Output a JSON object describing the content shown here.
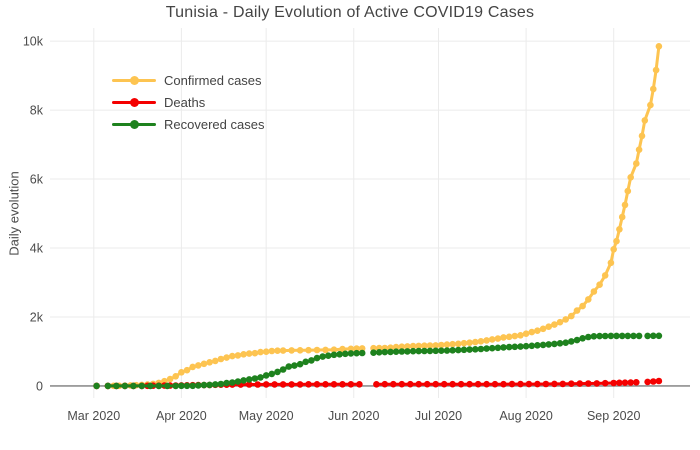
{
  "title": "Tunisia - Daily Evolution of Active COVID19 Cases",
  "colors": {
    "background": "#ffffff",
    "grid": "#ebebeb",
    "zeroline": "#8f8f8f",
    "title_text": "#444444",
    "tick_text": "#4c4c4c",
    "confirmed": "#fdc451",
    "deaths": "#f40000",
    "recovered": "#1e821e"
  },
  "chart_data": {
    "type": "line",
    "title": "Tunisia - Daily Evolution of Active COVID19 Cases",
    "xlabel": "",
    "ylabel": "Daily evolution",
    "x_unit": "days since 2020-03-01",
    "xlim": [
      -15.5,
      211
    ],
    "ylim": [
      -350,
      10380
    ],
    "grid": true,
    "legend_position": "inside-top-left",
    "marker_mode": "lines+markers",
    "x_ticks": [
      {
        "day": 0,
        "label": "Mar 2020"
      },
      {
        "day": 31,
        "label": "Apr 2020"
      },
      {
        "day": 61,
        "label": "May 2020"
      },
      {
        "day": 92,
        "label": "Jun 2020"
      },
      {
        "day": 122,
        "label": "Jul 2020"
      },
      {
        "day": 153,
        "label": "Aug 2020"
      },
      {
        "day": 184,
        "label": "Sep 2020"
      }
    ],
    "y_ticks": [
      {
        "value": 0,
        "label": "0"
      },
      {
        "value": 2000,
        "label": "2k"
      },
      {
        "value": 4000,
        "label": "4k"
      },
      {
        "value": 6000,
        "label": "6k"
      },
      {
        "value": 8000,
        "label": "8k"
      },
      {
        "value": 10000,
        "label": "10k"
      }
    ],
    "series": [
      {
        "name": "Confirmed cases",
        "color": "#fdc451",
        "points": [
          [
            1,
            1
          ],
          [
            2,
            null
          ],
          [
            5,
            2
          ],
          [
            7,
            3
          ],
          [
            9,
            5
          ],
          [
            11,
            7
          ],
          [
            13,
            16
          ],
          [
            15,
            20
          ],
          [
            17,
            29
          ],
          [
            19,
            39
          ],
          [
            21,
            60
          ],
          [
            23,
            89
          ],
          [
            25,
            138
          ],
          [
            27,
            197
          ],
          [
            29,
            278
          ],
          [
            31,
            394
          ],
          [
            33,
            455
          ],
          [
            35,
            553
          ],
          [
            37,
            596
          ],
          [
            39,
            643
          ],
          [
            41,
            685
          ],
          [
            43,
            726
          ],
          [
            45,
            780
          ],
          [
            47,
            822
          ],
          [
            49,
            866
          ],
          [
            51,
            884
          ],
          [
            53,
            918
          ],
          [
            55,
            939
          ],
          [
            57,
            949
          ],
          [
            59,
            980
          ],
          [
            61,
            994
          ],
          [
            63,
            1013
          ],
          [
            65,
            1022
          ],
          [
            67,
            1026
          ],
          [
            70,
            1030
          ],
          [
            73,
            1032
          ],
          [
            76,
            1036
          ],
          [
            79,
            1043
          ],
          [
            82,
            1046
          ],
          [
            85,
            1051
          ],
          [
            88,
            1068
          ],
          [
            91,
            1077
          ],
          [
            93,
            1084
          ],
          [
            95,
            1087
          ],
          [
            97,
            null
          ],
          [
            99,
            1093
          ],
          [
            101,
            1096
          ],
          [
            103,
            1100
          ],
          [
            105,
            1110
          ],
          [
            107,
            1125
          ],
          [
            109,
            1138
          ],
          [
            111,
            1146
          ],
          [
            113,
            1156
          ],
          [
            115,
            1162
          ],
          [
            117,
            1168
          ],
          [
            119,
            1172
          ],
          [
            121,
            1174
          ],
          [
            123,
            1186
          ],
          [
            125,
            1199
          ],
          [
            127,
            1210
          ],
          [
            129,
            1221
          ],
          [
            131,
            1240
          ],
          [
            133,
            1255
          ],
          [
            135,
            1271
          ],
          [
            137,
            1295
          ],
          [
            139,
            1319
          ],
          [
            141,
            1348
          ],
          [
            143,
            1374
          ],
          [
            145,
            1406
          ],
          [
            147,
            1425
          ],
          [
            149,
            1444
          ],
          [
            151,
            1468
          ],
          [
            153,
            1514
          ],
          [
            155,
            1561
          ],
          [
            157,
            1601
          ],
          [
            159,
            1656
          ],
          [
            161,
            1717
          ],
          [
            163,
            1780
          ],
          [
            165,
            1847
          ],
          [
            167,
            1928
          ],
          [
            169,
            2024
          ],
          [
            171,
            2185
          ],
          [
            173,
            2314
          ],
          [
            175,
            2508
          ],
          [
            177,
            2738
          ],
          [
            179,
            2935
          ],
          [
            181,
            3206
          ],
          [
            183,
            3572
          ],
          [
            184,
            3963
          ],
          [
            185,
            4196
          ],
          [
            186,
            4542
          ],
          [
            187,
            4900
          ],
          [
            188,
            5250
          ],
          [
            189,
            5650
          ],
          [
            190,
            6050
          ],
          [
            192,
            6450
          ],
          [
            193,
            6850
          ],
          [
            194,
            7250
          ],
          [
            195,
            7700
          ],
          [
            197,
            8145
          ],
          [
            198,
            8610
          ],
          [
            199,
            9160
          ],
          [
            200,
            9850
          ]
        ]
      },
      {
        "name": "Deaths",
        "color": "#f40000",
        "points": [
          [
            1,
            0
          ],
          [
            2,
            null
          ],
          [
            5,
            0
          ],
          [
            8,
            0
          ],
          [
            11,
            0
          ],
          [
            14,
            0
          ],
          [
            17,
            0
          ],
          [
            19,
            3
          ],
          [
            21,
            6
          ],
          [
            23,
            8
          ],
          [
            25,
            10
          ],
          [
            27,
            11
          ],
          [
            29,
            12
          ],
          [
            31,
            14
          ],
          [
            33,
            18
          ],
          [
            35,
            22
          ],
          [
            37,
            24
          ],
          [
            39,
            25
          ],
          [
            41,
            28
          ],
          [
            43,
            34
          ],
          [
            45,
            35
          ],
          [
            47,
            37
          ],
          [
            49,
            38
          ],
          [
            52,
            40
          ],
          [
            55,
            41
          ],
          [
            58,
            42
          ],
          [
            61,
            43
          ],
          [
            64,
            44
          ],
          [
            67,
            44
          ],
          [
            70,
            45
          ],
          [
            73,
            45
          ],
          [
            76,
            46
          ],
          [
            79,
            46
          ],
          [
            82,
            47
          ],
          [
            85,
            47
          ],
          [
            88,
            47
          ],
          [
            91,
            48
          ],
          [
            94,
            48
          ],
          [
            97,
            null
          ],
          [
            100,
            48
          ],
          [
            103,
            49
          ],
          [
            106,
            49
          ],
          [
            109,
            49
          ],
          [
            112,
            49
          ],
          [
            115,
            50
          ],
          [
            118,
            50
          ],
          [
            121,
            50
          ],
          [
            124,
            50
          ],
          [
            127,
            50
          ],
          [
            130,
            50
          ],
          [
            133,
            50
          ],
          [
            136,
            50
          ],
          [
            139,
            50
          ],
          [
            142,
            50
          ],
          [
            145,
            51
          ],
          [
            148,
            52
          ],
          [
            151,
            52
          ],
          [
            154,
            53
          ],
          [
            157,
            54
          ],
          [
            160,
            56
          ],
          [
            163,
            58
          ],
          [
            166,
            60
          ],
          [
            169,
            64
          ],
          [
            172,
            67
          ],
          [
            175,
            70
          ],
          [
            178,
            74
          ],
          [
            181,
            79
          ],
          [
            184,
            85
          ],
          [
            186,
            90
          ],
          [
            188,
            94
          ],
          [
            190,
            98
          ],
          [
            192,
            105
          ],
          [
            194,
            null
          ],
          [
            196,
            118
          ],
          [
            198,
            128
          ],
          [
            200,
            142
          ]
        ]
      },
      {
        "name": "Recovered cases",
        "color": "#1e821e",
        "points": [
          [
            1,
            0
          ],
          [
            2,
            null
          ],
          [
            5,
            0
          ],
          [
            8,
            0
          ],
          [
            11,
            0
          ],
          [
            14,
            0
          ],
          [
            17,
            1
          ],
          [
            20,
            1
          ],
          [
            23,
            2
          ],
          [
            26,
            2
          ],
          [
            29,
            2
          ],
          [
            31,
            3
          ],
          [
            33,
            4
          ],
          [
            35,
            5
          ],
          [
            37,
            16
          ],
          [
            39,
            25
          ],
          [
            41,
            30
          ],
          [
            43,
            43
          ],
          [
            45,
            55
          ],
          [
            47,
            81
          ],
          [
            49,
            100
          ],
          [
            51,
            125
          ],
          [
            53,
            160
          ],
          [
            55,
            190
          ],
          [
            57,
            216
          ],
          [
            59,
            246
          ],
          [
            61,
            305
          ],
          [
            63,
            350
          ],
          [
            65,
            406
          ],
          [
            67,
            476
          ],
          [
            69,
            560
          ],
          [
            71,
            591
          ],
          [
            73,
            631
          ],
          [
            75,
            700
          ],
          [
            77,
            741
          ],
          [
            79,
            807
          ],
          [
            81,
            852
          ],
          [
            83,
            876
          ],
          [
            85,
            902
          ],
          [
            87,
            916
          ],
          [
            89,
            932
          ],
          [
            91,
            944
          ],
          [
            93,
            950
          ],
          [
            95,
            955
          ],
          [
            97,
            null
          ],
          [
            99,
            965
          ],
          [
            101,
            975
          ],
          [
            103,
            982
          ],
          [
            105,
            988
          ],
          [
            107,
            993
          ],
          [
            109,
            998
          ],
          [
            111,
            1002
          ],
          [
            113,
            1006
          ],
          [
            115,
            1010
          ],
          [
            117,
            1013
          ],
          [
            119,
            1016
          ],
          [
            121,
            1020
          ],
          [
            123,
            1023
          ],
          [
            125,
            1026
          ],
          [
            127,
            1032
          ],
          [
            129,
            1040
          ],
          [
            131,
            1048
          ],
          [
            133,
            1055
          ],
          [
            135,
            1063
          ],
          [
            137,
            1071
          ],
          [
            139,
            1082
          ],
          [
            141,
            1093
          ],
          [
            143,
            1105
          ],
          [
            145,
            1117
          ],
          [
            147,
            1126
          ],
          [
            149,
            1134
          ],
          [
            151,
            1142
          ],
          [
            153,
            1152
          ],
          [
            155,
            1164
          ],
          [
            157,
            1177
          ],
          [
            159,
            1190
          ],
          [
            161,
            1204
          ],
          [
            163,
            1219
          ],
          [
            165,
            1235
          ],
          [
            167,
            1254
          ],
          [
            169,
            1290
          ],
          [
            171,
            1330
          ],
          [
            173,
            1380
          ],
          [
            175,
            1420
          ],
          [
            177,
            1438
          ],
          [
            179,
            1445
          ],
          [
            181,
            1448
          ],
          [
            183,
            1450
          ],
          [
            185,
            1450
          ],
          [
            187,
            1451
          ],
          [
            189,
            1452
          ],
          [
            191,
            1452
          ],
          [
            193,
            1452
          ],
          [
            194,
            null
          ],
          [
            196,
            1452
          ],
          [
            198,
            1453
          ],
          [
            200,
            1453
          ]
        ]
      }
    ]
  }
}
